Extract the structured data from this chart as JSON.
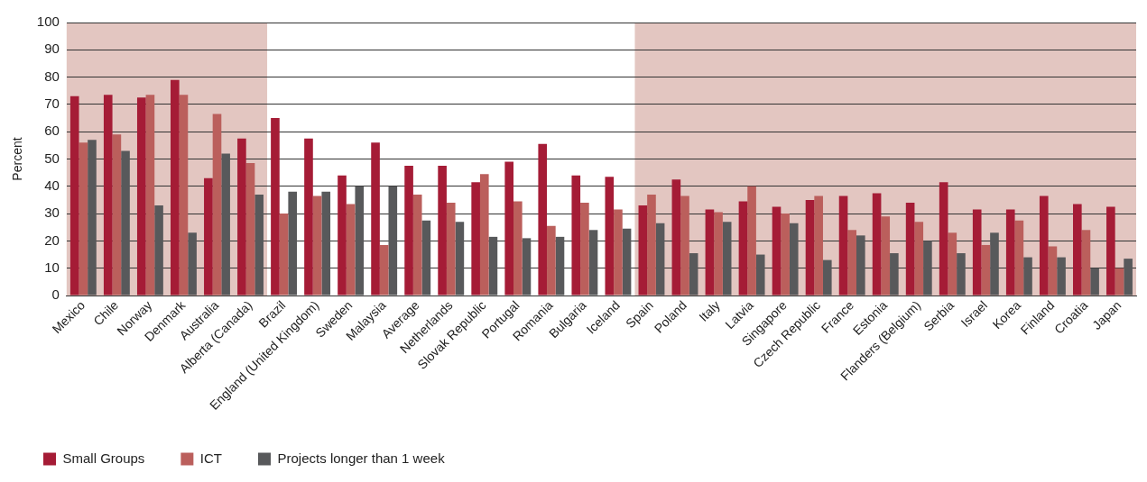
{
  "chart_data": {
    "type": "bar",
    "ylabel": "Percent",
    "categories": [
      "Mexico",
      "Chile",
      "Norway",
      "Denmark",
      "Australia",
      "Alberta (Canada)",
      "Brazil",
      "England (United Kingdom)",
      "Sweden",
      "Malaysia",
      "Average",
      "Netherlands",
      "Slovak Republic",
      "Portugal",
      "Romania",
      "Bulgaria",
      "Iceland",
      "Spain",
      "Poland",
      "Italy",
      "Latvia",
      "Singapore",
      "Czech Republic",
      "France",
      "Estonia",
      "Flanders (Belgium)",
      "Serbia",
      "Israel",
      "Korea",
      "Finland",
      "Croatia",
      "Japan"
    ],
    "series": [
      {
        "name": "Small Groups",
        "color": "#a51c36",
        "values": [
          73,
          73.5,
          72.5,
          79,
          43,
          57.5,
          65,
          57.5,
          44,
          56,
          47.5,
          47.5,
          41.5,
          49,
          55.5,
          44,
          43.5,
          33,
          42.5,
          31.5,
          34.5,
          32.5,
          35,
          36.5,
          37.5,
          34,
          41.5,
          31.5,
          31.5,
          36.5,
          33.5,
          32.5
        ]
      },
      {
        "name": "ICT",
        "color": "#bb5f5c",
        "values": [
          56,
          59,
          73.5,
          73.5,
          66.5,
          48.5,
          30,
          36.5,
          33.5,
          18.5,
          37,
          34,
          44.5,
          34.5,
          25.5,
          34,
          31.5,
          37,
          36.5,
          30.5,
          40,
          30,
          36.5,
          24,
          29,
          27,
          23,
          18.5,
          27.5,
          18,
          24,
          10
        ]
      },
      {
        "name": "Projects longer than 1 week",
        "color": "#58595b",
        "values": [
          57,
          53,
          33,
          23,
          52,
          37,
          38,
          38,
          40,
          40,
          27.5,
          27,
          21.5,
          21,
          21.5,
          24,
          24.5,
          26.5,
          15.5,
          27,
          15,
          26.5,
          13,
          22,
          15.5,
          20,
          15.5,
          23,
          14,
          14,
          10,
          13.5
        ]
      }
    ],
    "ylim": [
      0,
      100
    ],
    "yticks": [
      0,
      10,
      20,
      30,
      40,
      50,
      60,
      70,
      80,
      90,
      100
    ],
    "grid": "y",
    "legend": "bottom left",
    "bands": [
      {
        "axis": "x",
        "from": "Mexico",
        "to": "Alberta (Canada)",
        "color": "#e3c6c1"
      },
      {
        "axis": "x",
        "from": "Spain",
        "to": "Japan",
        "color": "#e3c6c1"
      }
    ]
  }
}
